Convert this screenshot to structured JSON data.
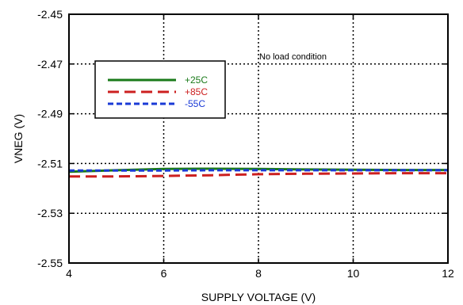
{
  "chart_data": {
    "type": "line",
    "xlabel": "SUPPLY VOLTAGE (V)",
    "ylabel": "VNEG (V)",
    "xlim": [
      4,
      12
    ],
    "ylim": [
      -2.55,
      -2.45
    ],
    "xticks": [
      4,
      6,
      8,
      10,
      12
    ],
    "xtick_labels": [
      "4",
      "6",
      "8",
      "10",
      "12"
    ],
    "yticks": [
      -2.55,
      -2.53,
      -2.51,
      -2.49,
      -2.47,
      -2.45
    ],
    "ytick_labels": [
      "-2.55",
      "-2.53",
      "-2.51",
      "-2.49",
      "-2.47",
      "-2.45"
    ],
    "grid": true,
    "legend_position": "upper-left",
    "annotation": "No load condition",
    "x": [
      4,
      5,
      6,
      7,
      8,
      9,
      10,
      11,
      12
    ],
    "series": [
      {
        "name": "+25C",
        "color": "#1a7a1a",
        "dash": "solid",
        "values": [
          -2.5133,
          -2.5127,
          -2.5122,
          -2.5121,
          -2.5122,
          -2.5124,
          -2.5125,
          -2.5126,
          -2.5126
        ]
      },
      {
        "name": "+85C",
        "color": "#cc2020",
        "dash": "long-dash",
        "values": [
          -2.5152,
          -2.5152,
          -2.515,
          -2.5147,
          -2.5143,
          -2.5141,
          -2.514,
          -2.5139,
          -2.5139
        ]
      },
      {
        "name": "-55C",
        "color": "#1a3ad6",
        "dash": "short-dash",
        "values": [
          -2.5128,
          -2.5128,
          -2.5128,
          -2.5127,
          -2.5127,
          -2.5127,
          -2.5127,
          -2.5127,
          -2.5127
        ]
      }
    ]
  }
}
